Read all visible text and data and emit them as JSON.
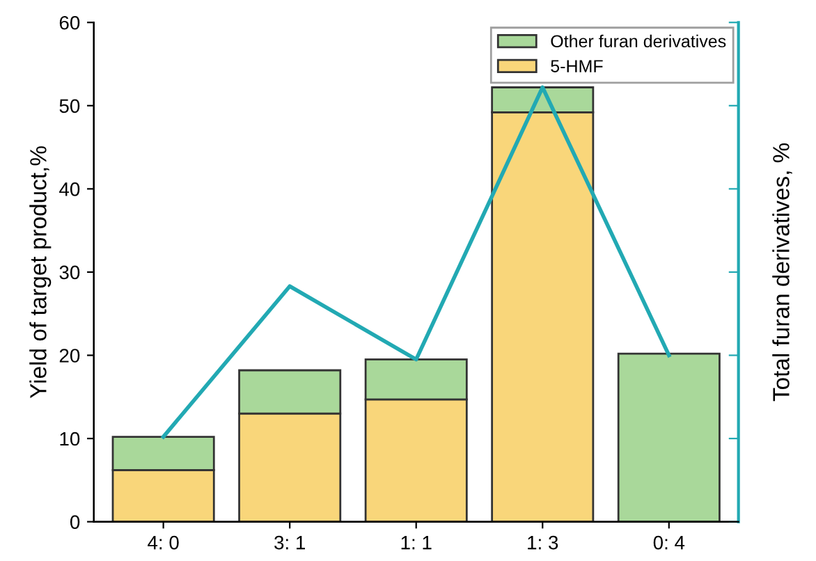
{
  "chart_data": {
    "type": "bar",
    "stacked": true,
    "xlabel": null,
    "ylabel": "Yield of target product,%",
    "y2label": "Total furan derivatives, %",
    "categories": [
      "4: 0",
      "3: 1",
      "1: 1",
      "1: 3",
      "0: 4"
    ],
    "series": [
      {
        "name": "5-HMF",
        "color": "#f9d67a",
        "values": [
          6.2,
          13.0,
          14.7,
          49.2,
          0
        ]
      },
      {
        "name": "Other furan derivatives",
        "color": "#a9d89a",
        "values": [
          4.0,
          5.2,
          4.8,
          3.0,
          20.2
        ]
      },
      {
        "type": "line",
        "color": "#22a9b3",
        "values": [
          10.2,
          28.3,
          19.5,
          52.2,
          20.0
        ]
      }
    ],
    "ylim": [
      0,
      60
    ],
    "yticks": [
      0,
      10,
      20,
      30,
      40,
      50,
      60
    ],
    "legend": "top right",
    "grid": false
  }
}
